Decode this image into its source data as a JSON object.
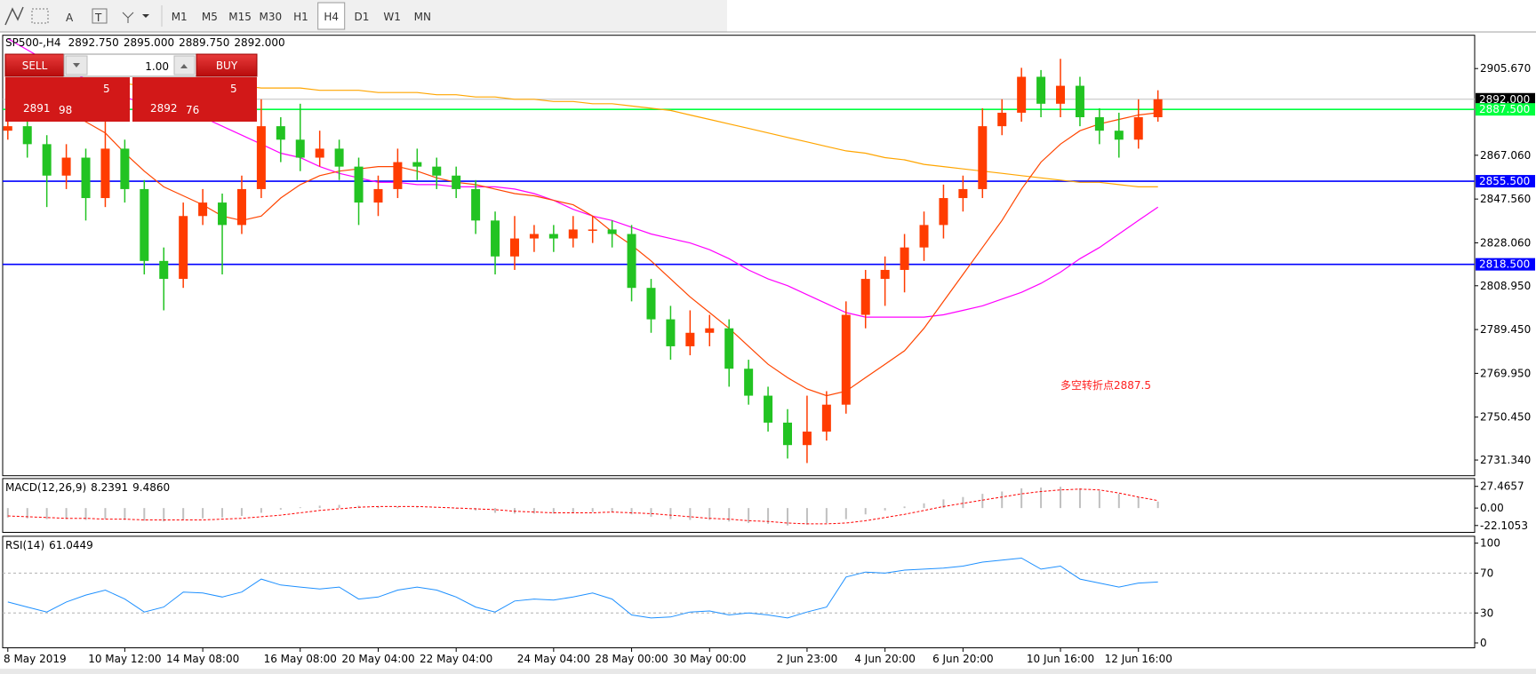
{
  "toolbar": {
    "periods": [
      "M1",
      "M5",
      "M15",
      "M30",
      "H1",
      "H4",
      "D1",
      "W1",
      "MN"
    ],
    "active_period": "H4"
  },
  "header": {
    "symbol": "SP500-,H4",
    "open": "2892.750",
    "high": "2895.000",
    "low": "2889.750",
    "close": "2892.000"
  },
  "trade_panel": {
    "sell": "SELL",
    "lots": "1.00",
    "buy": "BUY",
    "sell_price": [
      "2891",
      "98",
      "5"
    ],
    "buy_price": [
      "2892",
      "76",
      "5"
    ]
  },
  "chart_data": [
    {
      "type": "candlestick",
      "categories": [
        "8 May 2019",
        null,
        null,
        null,
        null,
        null,
        "10 May 12:00",
        null,
        null,
        null,
        "14 May 08:00",
        null,
        null,
        null,
        null,
        "16 May 08:00",
        null,
        null,
        null,
        "20 May 04:00",
        null,
        null,
        null,
        "22 May 04:00",
        null,
        null,
        null,
        null,
        "24 May 04:00",
        null,
        null,
        null,
        "28 May 00:00",
        null,
        null,
        null,
        "30 May 00:00",
        null,
        null,
        null,
        null,
        "2 Jun 23:00",
        null,
        null,
        null,
        "4 Jun 20:00",
        null,
        null,
        null,
        "6 Jun 20:00",
        null,
        null,
        null,
        null,
        "10 Jun 16:00",
        null,
        null,
        null,
        "12 Jun 16:00",
        null
      ],
      "open": [
        2878,
        2880,
        2872,
        2858,
        2866,
        2848,
        2870,
        2852,
        2820,
        2812,
        2840,
        2846,
        2836,
        2852,
        2880,
        2874,
        2866,
        2870,
        2862,
        2846,
        2852,
        2864,
        2862,
        2858,
        2852,
        2838,
        2822,
        2830,
        2832,
        2830,
        2834,
        2834,
        2832,
        2808,
        2794,
        2782,
        2788,
        2790,
        2772,
        2760,
        2748,
        2738,
        2744,
        2756,
        2796,
        2812,
        2816,
        2826,
        2836,
        2848,
        2852,
        2880,
        2886,
        2902,
        2890,
        2898,
        2884,
        2878,
        2874,
        2884
      ],
      "high": [
        2886,
        2884,
        2876,
        2872,
        2870,
        2886,
        2874,
        2856,
        2826,
        2846,
        2852,
        2850,
        2858,
        2892,
        2884,
        2890,
        2878,
        2874,
        2866,
        2858,
        2870,
        2870,
        2866,
        2862,
        2856,
        2842,
        2840,
        2836,
        2836,
        2840,
        2840,
        2838,
        2836,
        2812,
        2800,
        2798,
        2796,
        2794,
        2776,
        2764,
        2754,
        2760,
        2762,
        2802,
        2816,
        2822,
        2832,
        2842,
        2854,
        2858,
        2888,
        2892,
        2906,
        2905,
        2910,
        2902,
        2888,
        2886,
        2892,
        2896
      ],
      "low": [
        2874,
        2866,
        2844,
        2852,
        2838,
        2844,
        2846,
        2814,
        2798,
        2808,
        2836,
        2814,
        2832,
        2848,
        2864,
        2860,
        2862,
        2856,
        2836,
        2840,
        2848,
        2856,
        2852,
        2848,
        2832,
        2814,
        2816,
        2824,
        2824,
        2826,
        2828,
        2826,
        2802,
        2788,
        2776,
        2778,
        2782,
        2764,
        2756,
        2744,
        2732,
        2730,
        2740,
        2752,
        2790,
        2800,
        2806,
        2820,
        2830,
        2842,
        2848,
        2876,
        2882,
        2884,
        2884,
        2880,
        2872,
        2866,
        2870,
        2882
      ],
      "close": [
        2880,
        2872,
        2858,
        2866,
        2848,
        2870,
        2852,
        2820,
        2812,
        2840,
        2846,
        2836,
        2852,
        2880,
        2874,
        2866,
        2870,
        2862,
        2846,
        2852,
        2864,
        2862,
        2858,
        2852,
        2838,
        2822,
        2830,
        2832,
        2830,
        2834,
        2834,
        2832,
        2808,
        2794,
        2782,
        2788,
        2790,
        2772,
        2760,
        2748,
        2738,
        2744,
        2756,
        2796,
        2812,
        2816,
        2826,
        2836,
        2848,
        2852,
        2880,
        2886,
        2902,
        2890,
        2898,
        2884,
        2878,
        2874,
        2884,
        2892
      ],
      "up_color": "#ff3c00",
      "down_color": "#22c322",
      "lines": [
        {
          "color": "#ffa500",
          "values": [
            2900,
            2900,
            2900,
            2899,
            2899,
            2899,
            2899,
            2898,
            2898,
            2898,
            2898,
            2898,
            2898,
            2897,
            2897,
            2897,
            2896,
            2896,
            2896,
            2895,
            2895,
            2895,
            2894,
            2894,
            2893,
            2893,
            2892,
            2892,
            2891,
            2891,
            2890,
            2890,
            2889,
            2888,
            2887,
            2885,
            2883,
            2881,
            2879,
            2877,
            2875,
            2873,
            2871,
            2869,
            2868,
            2866,
            2865,
            2863,
            2862,
            2861,
            2860,
            2859,
            2858,
            2857,
            2856,
            2855,
            2855,
            2854,
            2853,
            2853
          ]
        },
        {
          "color": "#ff00ff",
          "values": [
            2919,
            2914,
            2909,
            2905,
            2901,
            2897,
            2893,
            2890,
            2888,
            2887,
            2884,
            2880,
            2876,
            2872,
            2868,
            2866,
            2862,
            2859,
            2857,
            2855,
            2855,
            2854,
            2854,
            2853,
            2853,
            2853,
            2852,
            2850,
            2847,
            2843,
            2840,
            2838,
            2835,
            2832,
            2830,
            2828,
            2825,
            2821,
            2816,
            2812,
            2809,
            2805,
            2801,
            2797,
            2795,
            2795,
            2795,
            2795,
            2796,
            2798,
            2800,
            2803,
            2806,
            2810,
            2815,
            2821,
            2826,
            2832,
            2838,
            2844
          ]
        },
        {
          "color": "#ff4500",
          "values": [
            2893,
            2891,
            2889,
            2886,
            2882,
            2877,
            2868,
            2860,
            2853,
            2849,
            2845,
            2840,
            2838,
            2840,
            2848,
            2854,
            2858,
            2860,
            2861,
            2862,
            2862,
            2860,
            2857,
            2855,
            2854,
            2852,
            2850,
            2849,
            2847,
            2845,
            2840,
            2833,
            2827,
            2820,
            2812,
            2804,
            2797,
            2790,
            2782,
            2774,
            2768,
            2763,
            2760,
            2762,
            2768,
            2774,
            2780,
            2790,
            2802,
            2814,
            2826,
            2838,
            2852,
            2864,
            2872,
            2878,
            2881,
            2883,
            2885,
            2886
          ]
        }
      ],
      "hlines": [
        {
          "value": 2892,
          "label": "2892.000",
          "color": "#c0c0c0",
          "label_bg": "#000000"
        },
        {
          "value": 2887.5,
          "label": "2887.500",
          "color": "#00ff40",
          "label_bg": "#00ff40"
        },
        {
          "value": 2855.5,
          "label": "2855.500",
          "color": "#0000ff",
          "label_bg": "#0000ff"
        },
        {
          "value": 2818.5,
          "label": "2818.500",
          "color": "#0000ff",
          "label_bg": "#0000ff"
        }
      ],
      "ylim": [
        2724.4,
        2920.5
      ],
      "yticks": [
        {
          "value": 2905.67,
          "label": "2905.670"
        },
        {
          "value": 2867.06,
          "label": "2867.060"
        },
        {
          "value": 2847.56,
          "label": "2847.560"
        },
        {
          "value": 2828.06,
          "label": "2828.060"
        },
        {
          "value": 2808.95,
          "label": "2808.950"
        },
        {
          "value": 2789.45,
          "label": "2789.450"
        },
        {
          "value": 2769.95,
          "label": "2769.950"
        },
        {
          "value": 2750.45,
          "label": "2750.450"
        },
        {
          "value": 2731.34,
          "label": "2731.340"
        }
      ],
      "annotation": "多空转折点2887.5",
      "annotation_color": "#ff2020"
    },
    {
      "type": "macd",
      "label": "MACD(12,26,9)",
      "readout": [
        "8.2391",
        "9.4860"
      ],
      "values": [
        -12,
        -13,
        -14,
        -14,
        -15,
        -14,
        -15,
        -16,
        -17,
        -15,
        -13,
        -12,
        -10,
        -6,
        -2,
        1,
        3,
        4,
        3,
        2,
        2,
        1,
        0,
        -1,
        -3,
        -6,
        -7,
        -7,
        -7,
        -6,
        -5,
        -5,
        -8,
        -11,
        -14,
        -15,
        -15,
        -17,
        -19,
        -20,
        -22,
        -21,
        -19,
        -14,
        -8,
        -3,
        2,
        6,
        11,
        14,
        18,
        21,
        25,
        26,
        27,
        25,
        22,
        18,
        14,
        8.2391
      ],
      "signal": [
        -10,
        -11,
        -12,
        -13,
        -13,
        -14,
        -14,
        -15,
        -15,
        -15,
        -15,
        -14,
        -13,
        -11,
        -9,
        -6,
        -3,
        -1,
        1,
        2,
        2,
        2,
        1,
        0,
        -1,
        -2,
        -4,
        -5,
        -6,
        -6,
        -6,
        -5,
        -6,
        -7,
        -9,
        -11,
        -13,
        -14,
        -16,
        -17,
        -19,
        -20,
        -20,
        -19,
        -16,
        -12,
        -8,
        -3,
        2,
        6,
        10,
        14,
        18,
        21,
        23,
        24,
        23,
        19,
        14,
        9.486
      ],
      "color": "#c0c0c0",
      "signal_color": "#ff0000",
      "ylim": [
        -30.78,
        37.38
      ],
      "yticks": [
        27.4657,
        {
          "value": 0,
          "label": "0.00"
        },
        -22.1053
      ]
    },
    {
      "type": "line",
      "label": "RSI(14)",
      "readout": "61.0449",
      "values": [
        41,
        36,
        31,
        41,
        48,
        53,
        44,
        31,
        36,
        51,
        50,
        46,
        51,
        64,
        58,
        56,
        54,
        56,
        44,
        46,
        53,
        56,
        53,
        46,
        36,
        31,
        42,
        44,
        43,
        46,
        50,
        44,
        28,
        25,
        26,
        31,
        32,
        28,
        30,
        28,
        25,
        31,
        36,
        66,
        71,
        70,
        73,
        74,
        75,
        77,
        81,
        83,
        85,
        74,
        77,
        64,
        60,
        56,
        60,
        61.0449
      ],
      "color": "#1e90ff",
      "ylim": [
        -4.9,
        106.9
      ],
      "yticks": [
        100,
        70,
        30,
        0
      ],
      "levels": [
        70,
        30
      ]
    }
  ]
}
